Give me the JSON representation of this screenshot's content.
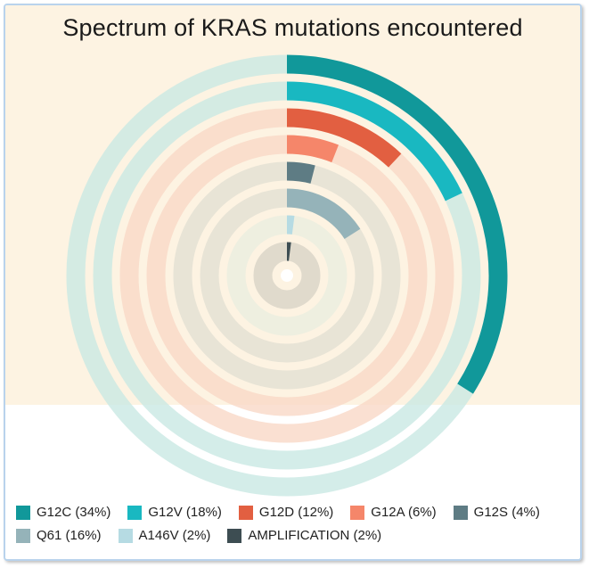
{
  "chart_data": {
    "type": "radial-bar",
    "title": "Spectrum of KRAS mutations encountered",
    "unit": "%",
    "max": 100,
    "series": [
      {
        "name": "G12C",
        "label": "G12C (34%)",
        "value": 34,
        "color": "#11989a"
      },
      {
        "name": "G12V",
        "label": "G12V (18%)",
        "value": 18,
        "color": "#19b8c1"
      },
      {
        "name": "G12D",
        "label": "G12D (12%)",
        "value": 12,
        "color": "#e25f41"
      },
      {
        "name": "G12A",
        "label": "G12A (6%)",
        "value": 6,
        "color": "#f5866a"
      },
      {
        "name": "G12S",
        "label": "G12S (4%)",
        "value": 4,
        "color": "#5e7c84"
      },
      {
        "name": "Q61",
        "label": "Q61 (16%)",
        "value": 16,
        "color": "#95b3b9"
      },
      {
        "name": "A146V",
        "label": "A146V (2%)",
        "value": 2,
        "color": "#b6dbe3"
      },
      {
        "name": "AMPLIFICATION",
        "label": "AMPLIFICATION (2%)",
        "value": 2,
        "color": "#3d4d52"
      }
    ],
    "track_colors": [
      "#c9e9e4",
      "#c9e9e4",
      "#f9d8c7",
      "#f9d8c7",
      "#e2e0d3",
      "#e2e0d3",
      "#eaeee0",
      "#d8d3c7"
    ],
    "legend_position": "bottom"
  }
}
